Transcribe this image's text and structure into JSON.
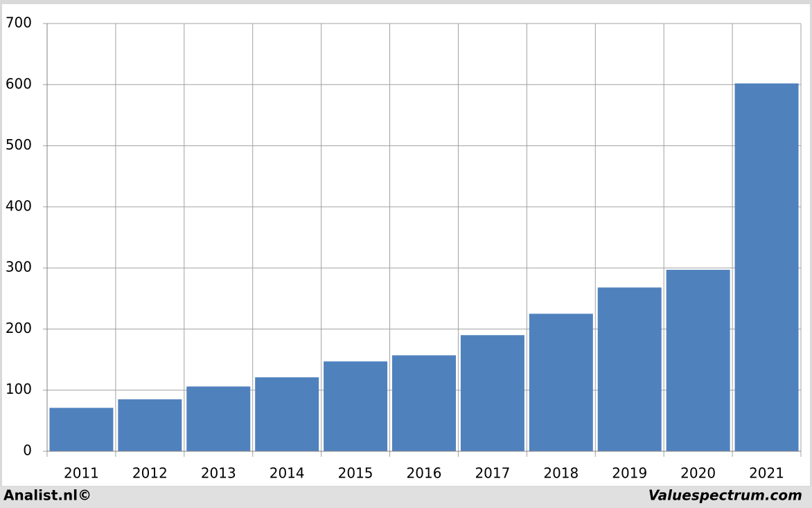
{
  "chart_data": {
    "type": "bar",
    "categories": [
      "2011",
      "2012",
      "2013",
      "2014",
      "2015",
      "2016",
      "2017",
      "2018",
      "2019",
      "2020",
      "2021"
    ],
    "values": [
      71,
      85,
      106,
      121,
      147,
      157,
      190,
      225,
      268,
      297,
      602
    ],
    "color": "#4f81bd",
    "ylim": [
      0,
      700
    ],
    "yticks": [
      0,
      100,
      200,
      300,
      400,
      500,
      600,
      700
    ],
    "grid": true,
    "footer_left": "Analist.nl©",
    "footer_right": "Valuespectrum.com"
  }
}
